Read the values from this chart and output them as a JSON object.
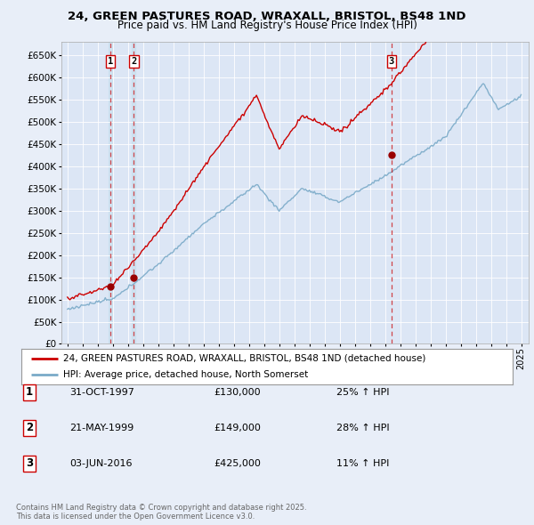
{
  "title_line1": "24, GREEN PASTURES ROAD, WRAXALL, BRISTOL, BS48 1ND",
  "title_line2": "Price paid vs. HM Land Registry's House Price Index (HPI)",
  "background_color": "#e8eef8",
  "plot_bg_color": "#dce6f5",
  "red_color": "#cc0000",
  "blue_color": "#7aaac8",
  "dashed_color": "#cc0000",
  "transaction_dates_num": [
    1997.83,
    1999.39,
    2016.42
  ],
  "transaction_prices": [
    130000,
    149000,
    425000
  ],
  "transaction_labels": [
    "1",
    "2",
    "3"
  ],
  "legend_label_red": "24, GREEN PASTURES ROAD, WRAXALL, BRISTOL, BS48 1ND (detached house)",
  "legend_label_blue": "HPI: Average price, detached house, North Somerset",
  "table_data": [
    [
      "1",
      "31-OCT-1997",
      "£130,000",
      "25% ↑ HPI"
    ],
    [
      "2",
      "21-MAY-1999",
      "£149,000",
      "28% ↑ HPI"
    ],
    [
      "3",
      "03-JUN-2016",
      "£425,000",
      "11% ↑ HPI"
    ]
  ],
  "footnote": "Contains HM Land Registry data © Crown copyright and database right 2025.\nThis data is licensed under the Open Government Licence v3.0.",
  "ylim": [
    0,
    680000
  ],
  "yticks": [
    0,
    50000,
    100000,
    150000,
    200000,
    250000,
    300000,
    350000,
    400000,
    450000,
    500000,
    550000,
    600000,
    650000
  ]
}
